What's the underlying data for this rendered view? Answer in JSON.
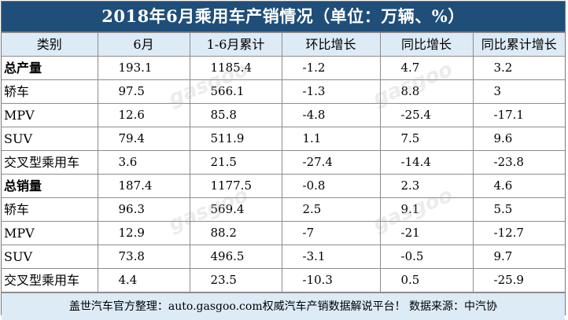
{
  "title": "2018年6月乘用车产销情况（单位：万辆、%）",
  "headers": [
    "类别",
    "6月",
    "1-6月累计",
    "环比增长",
    "同比增长",
    "同比累计增长"
  ],
  "rows": [
    {
      "category": "总产量",
      "bold": true,
      "values": [
        "193.1",
        "1185.4",
        "-1.2",
        "4.7",
        "3.2"
      ]
    },
    {
      "category": "轿车",
      "bold": false,
      "values": [
        "97.5",
        "566.1",
        "-1.3",
        "8.8",
        "3"
      ]
    },
    {
      "category": "MPV",
      "bold": false,
      "values": [
        "12.6",
        "85.8",
        "-4.8",
        "-25.4",
        "-17.1"
      ]
    },
    {
      "category": "SUV",
      "bold": false,
      "values": [
        "79.4",
        "511.9",
        "1.1",
        "7.5",
        "9.6"
      ]
    },
    {
      "category": "交叉型乘用车",
      "bold": false,
      "values": [
        "3.6",
        "21.5",
        "-27.4",
        "-14.4",
        "-23.8"
      ]
    },
    {
      "category": "总销量",
      "bold": true,
      "values": [
        "187.4",
        "1177.5",
        "-0.8",
        "2.3",
        "4.6"
      ]
    },
    {
      "category": "轿车",
      "bold": false,
      "values": [
        "96.3",
        "569.4",
        "2.5",
        "9.1",
        "5.5"
      ]
    },
    {
      "category": "MPV",
      "bold": false,
      "values": [
        "12.9",
        "88.2",
        "-7",
        "-21",
        "-12.7"
      ]
    },
    {
      "category": "SUV",
      "bold": false,
      "values": [
        "73.8",
        "496.5",
        "-3.1",
        "-0.5",
        "9.7"
      ]
    },
    {
      "category": "交叉型乘用车",
      "bold": false,
      "values": [
        "4.4",
        "23.5",
        "-10.3",
        "0.5",
        "-25.9"
      ]
    }
  ],
  "footer": "盖世汽车官方整理：auto.gasgoo.com权威汽车产销数据解说平台！  数据来源：中汽协",
  "watermark": {
    "brand": "gasgoo",
    "url": "auto.gasgoo.com"
  },
  "colors": {
    "title_bg": "#1f4e79",
    "header_bg": "#ddebf7",
    "footer_bg": "#ddebf7"
  }
}
